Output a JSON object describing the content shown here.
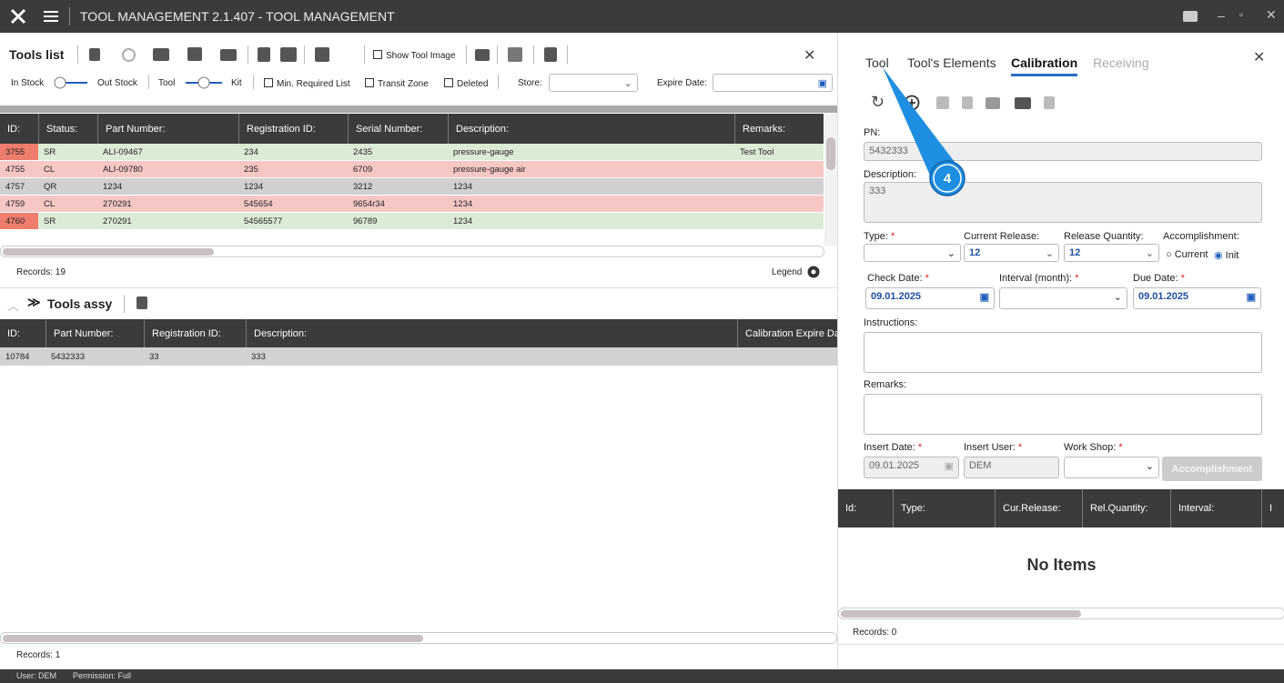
{
  "title_bar": {
    "title": "TOOL MANAGEMENT 2.1.407 - TOOL MANAGEMENT"
  },
  "required_mark": "*",
  "tools_list": {
    "title": "Tools list",
    "show_tool_image": "Show Tool Image",
    "filters": {
      "in_stock": "In Stock",
      "out_stock": "Out Stock",
      "tool": "Tool",
      "kit": "Kit",
      "min_required": "Min. Required List",
      "transit_zone": "Transit Zone",
      "deleted": "Deleted",
      "store": "Store:",
      "expire_date": "Expire Date:"
    },
    "columns": [
      "ID:",
      "Status:",
      "Part Number:",
      "Registration ID:",
      "Serial Number:",
      "Description:",
      "Remarks:"
    ],
    "rows": [
      [
        "3755",
        "SR",
        "ALI-09467",
        "234",
        "2435",
        "pressure-gauge",
        "Test Tool"
      ],
      [
        "4755",
        "CL",
        "ALI-09780",
        "235",
        "6709",
        "pressure-gauge air",
        ""
      ],
      [
        "4757",
        "QR",
        "1234",
        "1234",
        "3212",
        "1234",
        ""
      ],
      [
        "4759",
        "CL",
        "270291",
        "545654",
        "9654r34",
        "1234",
        ""
      ],
      [
        "4760",
        "SR",
        "270291",
        "54565577",
        "96789",
        "1234",
        ""
      ]
    ],
    "records": "Records: 19",
    "legend": "Legend"
  },
  "tools_assy": {
    "title": "Tools assy",
    "columns": [
      "ID:",
      "Part Number:",
      "Registration ID:",
      "Description:",
      "Calibration Expire Da"
    ],
    "rows": [
      [
        "10784",
        "5432333",
        "33",
        "333",
        ""
      ]
    ],
    "records": "Records: 1"
  },
  "calibration_panel": {
    "tabs": [
      "Tool",
      "Tool's Elements",
      "Calibration",
      "Receiving"
    ],
    "pn_label": "PN:",
    "pn_value": "5432333",
    "description_label": "Description:",
    "description_value": "333",
    "type_label": "Type:",
    "current_release_label": "Current Release:",
    "current_release_value": "12",
    "release_quantity_label": "Release Quantity:",
    "release_quantity_value": "12",
    "accomplishment_label": "Accomplishment:",
    "radio_current": "Current",
    "radio_init": "Init",
    "check_date_label": "Check Date:",
    "check_date_value": "09.01.2025",
    "interval_label": "Interval (month):",
    "due_date_label": "Due Date:",
    "due_date_value": "09.01.2025",
    "instructions_label": "Instructions:",
    "remarks_label": "Remarks:",
    "insert_date_label": "Insert Date:",
    "insert_date_value": "09.01.2025",
    "insert_user_label": "Insert User:",
    "insert_user_value": "DEM",
    "work_shop_label": "Work Shop:",
    "accomplishment_button": "Accomplishment",
    "columns": [
      "Id:",
      "Type:",
      "Cur.Release:",
      "Rel.Quantity:",
      "Interval:",
      "I"
    ],
    "empty": "No Items",
    "records": "Records: 0"
  },
  "callout": {
    "label": "4"
  },
  "status_bar": {
    "user": "User: DEM",
    "permission": "Permission: Full"
  }
}
